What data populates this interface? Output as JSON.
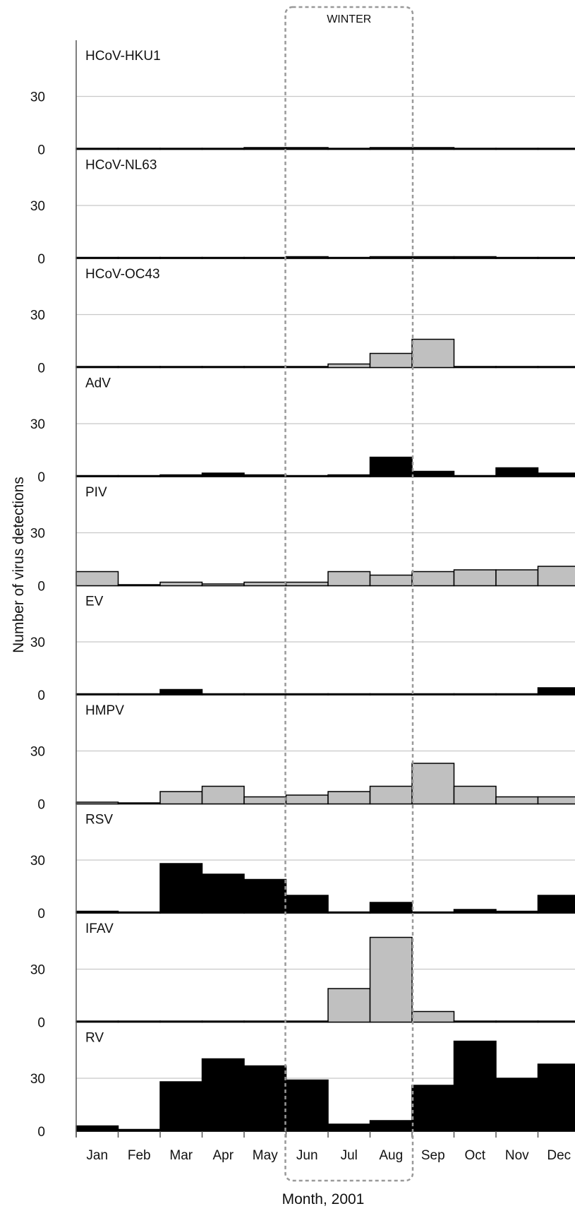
{
  "chart_data": {
    "type": "bar",
    "layout": "small-multiples",
    "categories": [
      "Jan",
      "Feb",
      "Mar",
      "Apr",
      "May",
      "Jun",
      "Jul",
      "Aug",
      "Sep",
      "Oct",
      "Nov",
      "Dec"
    ],
    "xlabel": "Month, 2001",
    "ylabel": "Number of virus detections",
    "y_ticks": [
      0,
      30
    ],
    "ylim": [
      0,
      60
    ],
    "grid": true,
    "highlight": {
      "label": "WINTER",
      "from": "Jun",
      "to": "Aug"
    },
    "colors": {
      "black": "#000000",
      "grey": "#c0c0c0",
      "grid": "#c8c8c8",
      "axis": "#555555",
      "highlight": "#999999"
    },
    "panels": [
      {
        "name": "HCoV-HKU1",
        "color": "black",
        "values": [
          0,
          0,
          0,
          0,
          1,
          1,
          0,
          1,
          1,
          0,
          0,
          0
        ]
      },
      {
        "name": "HCoV-NL63",
        "color": "black",
        "values": [
          0,
          0,
          0,
          0,
          0,
          1,
          0,
          1,
          1,
          1,
          0,
          0
        ]
      },
      {
        "name": "HCoV-OC43",
        "color": "grey",
        "values": [
          0,
          0,
          0,
          0,
          0,
          0,
          2,
          8,
          16,
          0,
          0,
          0
        ]
      },
      {
        "name": "AdV",
        "color": "black",
        "values": [
          0,
          0,
          1,
          2,
          1,
          0,
          1,
          11,
          3,
          0,
          5,
          2
        ]
      },
      {
        "name": "PIV",
        "color": "grey",
        "values": [
          8,
          0,
          2,
          1,
          2,
          2,
          8,
          6,
          8,
          9,
          9,
          11
        ]
      },
      {
        "name": "EV",
        "color": "black",
        "values": [
          0,
          0,
          3,
          0,
          0,
          0,
          0,
          0,
          0,
          0,
          0,
          4
        ]
      },
      {
        "name": "HMPV",
        "color": "grey",
        "values": [
          1,
          0,
          7,
          10,
          4,
          5,
          7,
          10,
          23,
          10,
          4,
          4
        ]
      },
      {
        "name": "RSV",
        "color": "black",
        "values": [
          1,
          0,
          28,
          22,
          19,
          10,
          0,
          6,
          0,
          2,
          1,
          10
        ]
      },
      {
        "name": "IFAV",
        "color": "grey",
        "values": [
          0,
          0,
          0,
          0,
          0,
          0,
          19,
          48,
          6,
          0,
          0,
          0
        ]
      },
      {
        "name": "RV",
        "color": "black",
        "values": [
          3,
          1,
          28,
          41,
          37,
          29,
          4,
          6,
          26,
          51,
          30,
          38
        ]
      }
    ]
  }
}
